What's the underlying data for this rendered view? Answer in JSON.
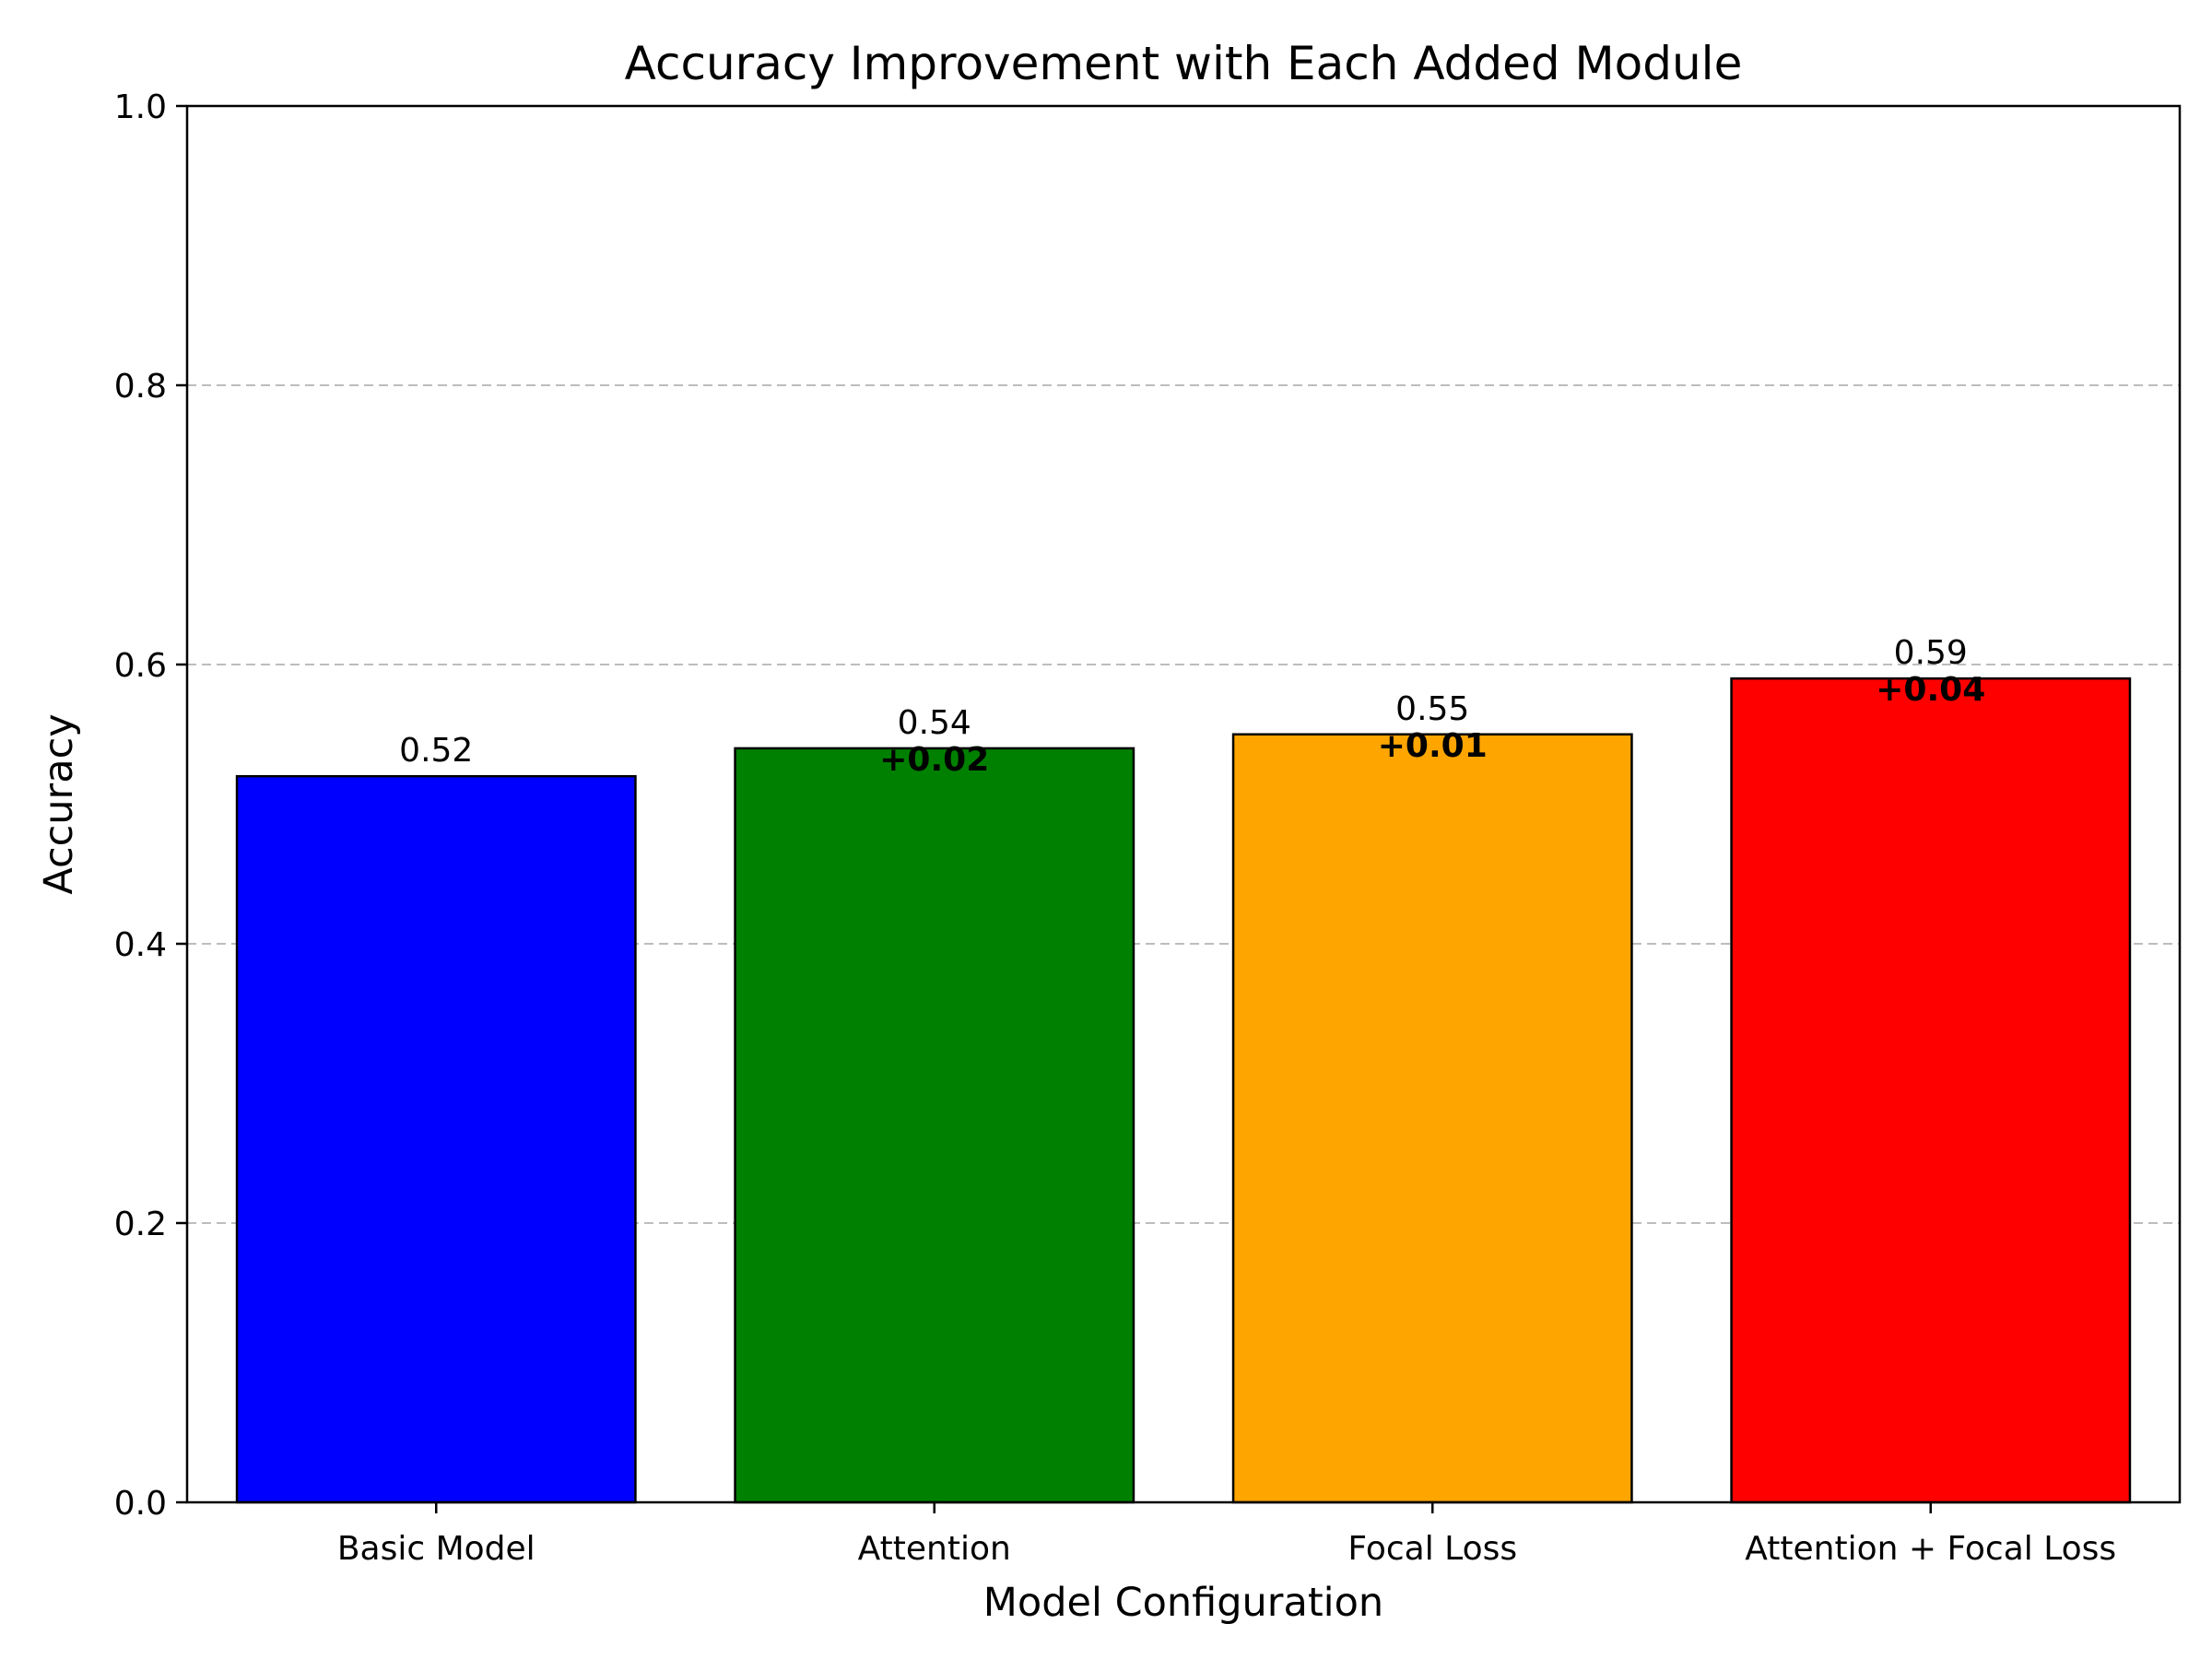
{
  "chart_data": {
    "type": "bar",
    "title": "Accuracy Improvement with Each Added Module",
    "xlabel": "Model Configuration",
    "ylabel": "Accuracy",
    "ylim": [
      0,
      1.0
    ],
    "yticks": [
      0.0,
      0.2,
      0.4,
      0.6,
      0.8,
      1.0
    ],
    "ytick_labels": [
      "0.0",
      "0.2",
      "0.4",
      "0.6",
      "0.8",
      "1.0"
    ],
    "grid": "y-axis dashed",
    "categories": [
      "Basic Model",
      "Attention",
      "Focal Loss",
      "Attention + Focal Loss"
    ],
    "values": [
      0.52,
      0.54,
      0.55,
      0.59
    ],
    "value_labels": [
      "0.52",
      "0.54",
      "0.55",
      "0.59"
    ],
    "improvement_labels": [
      "",
      "+0.02",
      "+0.01",
      "+0.04"
    ],
    "colors": [
      "#0000ff",
      "#008000",
      "#ffa500",
      "#ff0000"
    ],
    "edge_color": "#000000"
  }
}
